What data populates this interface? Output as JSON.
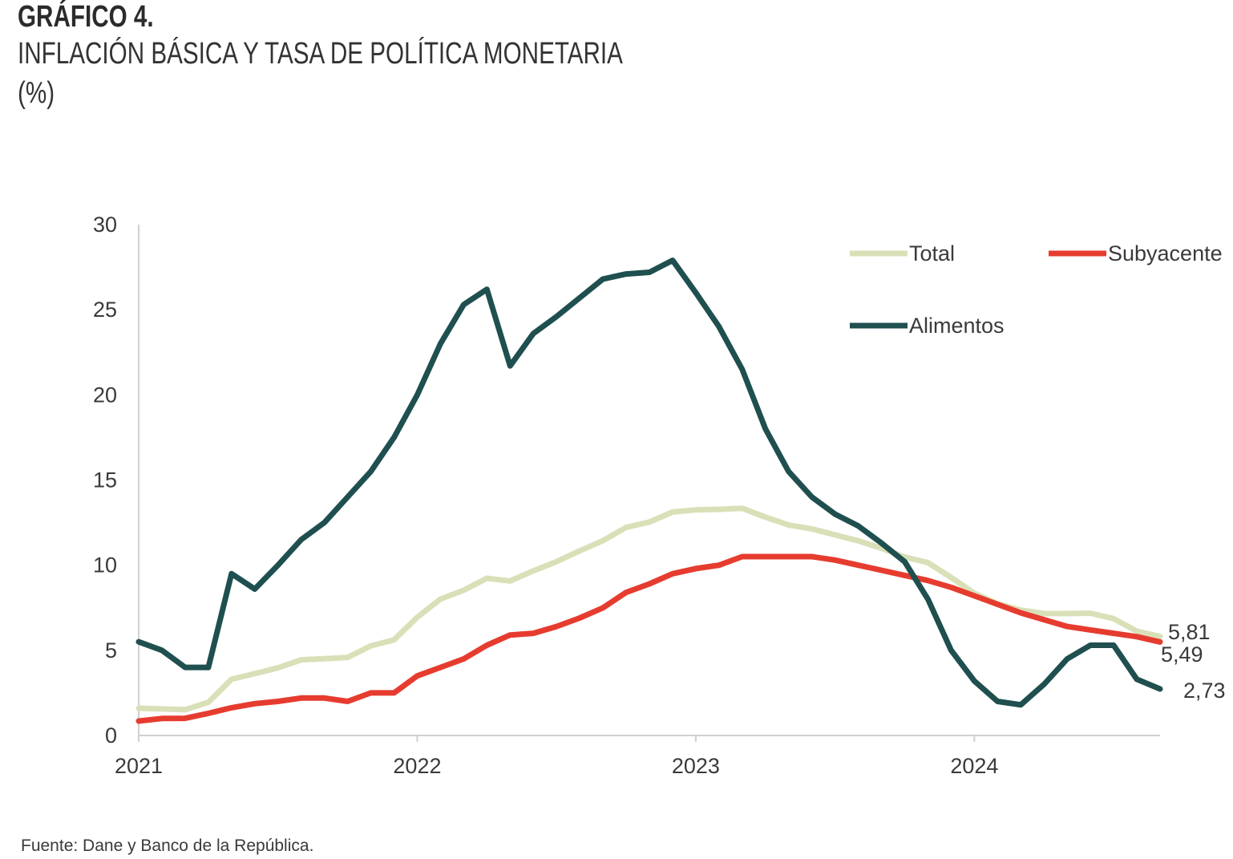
{
  "header": {
    "chart_number": "GRÁFICO 4.",
    "title": "INFLACIÓN BÁSICA Y TASA DE POLÍTICA MONETARIA",
    "unit": "(%)"
  },
  "footer": {
    "source": "Fuente: Dane y Banco de la República."
  },
  "chart_data": {
    "type": "line",
    "title": "INFLACIÓN BÁSICA Y TASA DE POLÍTICA MONETARIA",
    "ylabel": "(%)",
    "xlabel": "",
    "ylim": [
      0,
      30
    ],
    "yticks": [
      0,
      5,
      10,
      15,
      20,
      25,
      30
    ],
    "x_tick_labels": [
      "2021",
      "2022",
      "2023",
      "2024"
    ],
    "x_tick_months": [
      0,
      12,
      24,
      36
    ],
    "x_months_total": 45,
    "legend": "top-right",
    "series": [
      {
        "name": "Total",
        "color": "#d9e0b8",
        "end_label": "5,81",
        "values": [
          1.6,
          1.56,
          1.51,
          1.95,
          3.3,
          3.63,
          3.97,
          4.44,
          4.51,
          4.58,
          5.26,
          5.62,
          6.94,
          8.01,
          8.53,
          9.23,
          9.07,
          9.67,
          10.21,
          10.84,
          11.44,
          12.22,
          12.53,
          13.12,
          13.25,
          13.28,
          13.34,
          12.82,
          12.36,
          12.13,
          11.78,
          11.43,
          10.99,
          10.48,
          10.15,
          9.28,
          8.35,
          7.74,
          7.36,
          7.16,
          7.16,
          7.18,
          6.86,
          6.12,
          5.81
        ]
      },
      {
        "name": "Subyacente",
        "color": "#e63c2f",
        "end_label": "5,49",
        "values": [
          0.85,
          1.0,
          1.01,
          1.3,
          1.63,
          1.87,
          2.0,
          2.2,
          2.2,
          2.0,
          2.5,
          2.5,
          3.5,
          4.0,
          4.5,
          5.3,
          5.9,
          6.0,
          6.4,
          6.9,
          7.5,
          8.4,
          8.9,
          9.5,
          9.8,
          10.0,
          10.5,
          10.5,
          10.5,
          10.5,
          10.3,
          10.0,
          9.7,
          9.4,
          9.1,
          8.7,
          8.2,
          7.7,
          7.2,
          6.8,
          6.4,
          6.2,
          6.0,
          5.8,
          5.49
        ]
      },
      {
        "name": "Alimentos",
        "color": "#1f4f4f",
        "end_label": "2,73",
        "values": [
          5.5,
          5.0,
          4.0,
          4.0,
          9.5,
          8.6,
          10.0,
          11.5,
          12.5,
          14.0,
          15.5,
          17.5,
          20.0,
          23.0,
          25.3,
          26.2,
          21.7,
          23.6,
          24.6,
          25.7,
          26.8,
          27.1,
          27.2,
          27.9,
          26.0,
          24.0,
          21.5,
          18.0,
          15.5,
          14.0,
          13.0,
          12.3,
          11.3,
          10.2,
          8.0,
          5.0,
          3.2,
          2.0,
          1.8,
          3.0,
          4.5,
          5.3,
          5.3,
          3.3,
          2.73
        ]
      }
    ]
  }
}
